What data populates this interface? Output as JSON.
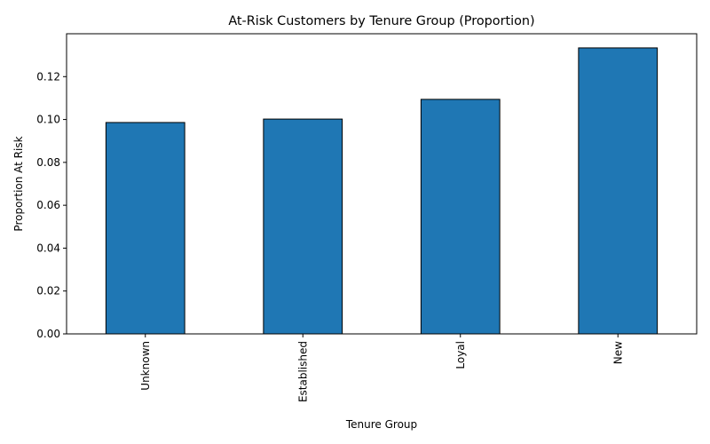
{
  "chart_data": {
    "type": "bar",
    "title": "At-Risk Customers by Tenure Group (Proportion)",
    "xlabel": "Tenure Group",
    "ylabel": "Proportion At Risk",
    "categories": [
      "Unknown",
      "Established",
      "Loyal",
      "New"
    ],
    "values": [
      0.0986,
      0.1002,
      0.1094,
      0.1334
    ],
    "ylim": [
      0,
      0.14
    ],
    "yticks": [
      0.0,
      0.02,
      0.04,
      0.06,
      0.08,
      0.1,
      0.12
    ],
    "ytick_labels": [
      "0.00",
      "0.02",
      "0.04",
      "0.06",
      "0.08",
      "0.10",
      "0.12"
    ],
    "bar_color": "#1f77b4",
    "edge_color": "#000000",
    "grid": false,
    "legend": false
  }
}
